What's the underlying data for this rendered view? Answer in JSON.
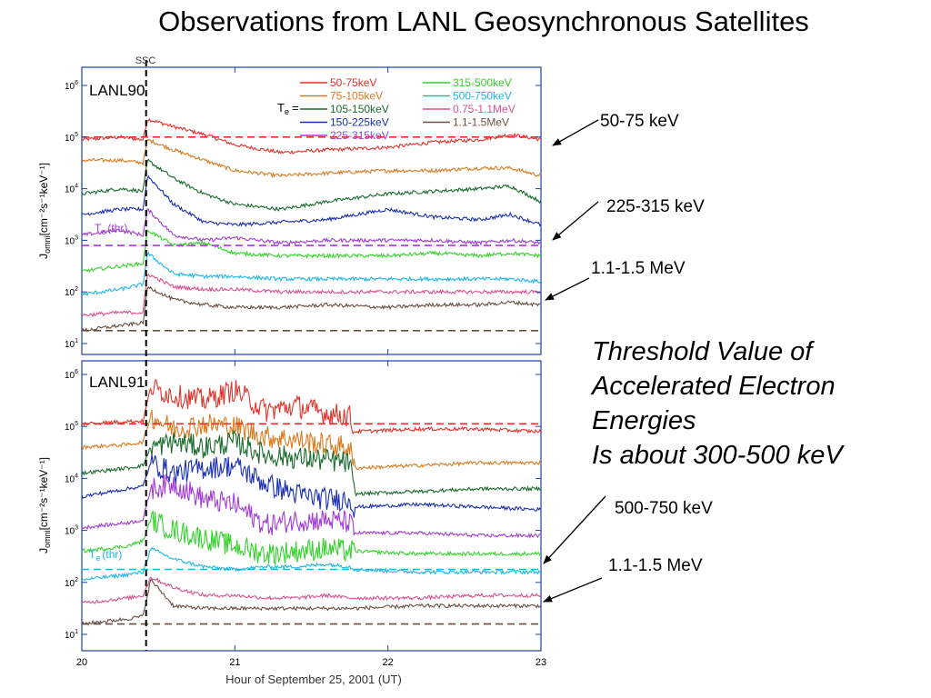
{
  "slide": {
    "title": "Observations from LANL Geosynchronous Satellites",
    "note_lines": [
      "Threshold Value of",
      "Accelerated Electron",
      "Energies",
      "Is about 300-500 keV"
    ],
    "callouts": [
      "50-75 keV",
      "225-315 keV",
      "1.1-1.5 MeV",
      "500-750 keV",
      "1.1-1.5 MeV"
    ]
  },
  "chart_data": {
    "type": "line",
    "xlabel": "Hour of September 25, 2001 (UT)",
    "x_ticks": [
      "20",
      "21",
      "22",
      "23"
    ],
    "xlim": [
      20,
      23
    ],
    "ylabel_main": "J",
    "ylabel_sub": "omni",
    "ylabel_units": "[cm⁻²s⁻¹keV⁻¹]",
    "y_scale": "log",
    "y_tick_base": "10",
    "y_ticks_top": [
      "6",
      "5",
      "4",
      "3",
      "2",
      "1"
    ],
    "y_ticks_bottom": [
      "6",
      "5",
      "4",
      "3",
      "2",
      "1"
    ],
    "ylim_log": [
      0.8,
      6.3
    ],
    "ssc_label": "SSC",
    "ssc_hour": 20.42,
    "legend_prefix": "T",
    "legend_prefix_sub": "e",
    "legend_prefix_eq": "=",
    "threshold_label": "T",
    "threshold_sub": "e",
    "threshold_suffix": "(thr)",
    "legend_placement": "top-right",
    "series": [
      {
        "name": "50-75keV",
        "color": "#e4322b"
      },
      {
        "name": "75-105keV",
        "color": "#d97a1f"
      },
      {
        "name": "105-150keV",
        "color": "#1a6b2c"
      },
      {
        "name": "150-225keV",
        "color": "#1a2fb5"
      },
      {
        "name": "225-315keV",
        "color": "#a23cd4"
      },
      {
        "name": "315-500keV",
        "color": "#33d12a"
      },
      {
        "name": "500-750keV",
        "color": "#1cb6e6"
      },
      {
        "name": "0.75-1.1MeV",
        "color": "#d9508e"
      },
      {
        "name": "1.1-1.5MeV",
        "color": "#6b4f44"
      }
    ],
    "panels": [
      {
        "name": "LANL90",
        "threshold_log": 2.9,
        "threshold_color": "#a23cd4",
        "reference_lines": [
          {
            "log": 5.0,
            "color": "#e4322b"
          },
          {
            "log": 2.9,
            "color": "#a23cd4"
          },
          {
            "log": 1.25,
            "color": "#6b4f44"
          }
        ],
        "levels": {
          "hours": [
            20.0,
            20.25,
            20.4,
            20.43,
            20.6,
            20.8,
            21.0,
            21.3,
            21.6,
            22.0,
            22.3,
            22.6,
            22.8,
            23.0
          ],
          "series": [
            [
              4.95,
              5.0,
              4.95,
              5.35,
              5.2,
              5.05,
              4.85,
              4.7,
              4.75,
              4.8,
              4.9,
              4.95,
              5.05,
              4.95
            ],
            [
              4.55,
              4.55,
              4.5,
              4.95,
              4.75,
              4.55,
              4.35,
              4.25,
              4.3,
              4.35,
              4.35,
              4.4,
              4.4,
              4.25
            ],
            [
              3.9,
              4.0,
              3.95,
              4.55,
              4.2,
              3.9,
              3.7,
              3.6,
              3.75,
              3.9,
              3.95,
              4.0,
              4.05,
              3.75
            ],
            [
              3.5,
              3.6,
              3.6,
              4.25,
              3.7,
              3.35,
              3.3,
              3.35,
              3.4,
              3.6,
              3.45,
              3.4,
              3.5,
              3.3
            ],
            [
              3.1,
              3.2,
              3.1,
              3.6,
              3.1,
              3.0,
              3.05,
              2.95,
              3.0,
              3.0,
              3.0,
              2.95,
              3.0,
              2.95
            ],
            [
              2.4,
              2.5,
              2.55,
              3.2,
              2.9,
              2.95,
              2.75,
              2.7,
              2.7,
              2.7,
              2.75,
              2.7,
              2.75,
              2.7
            ],
            [
              1.95,
              2.05,
              2.15,
              2.75,
              2.35,
              2.3,
              2.3,
              2.25,
              2.25,
              2.25,
              2.25,
              2.25,
              2.25,
              2.2
            ],
            [
              1.55,
              1.6,
              1.6,
              2.35,
              2.1,
              2.05,
              2.05,
              2.0,
              2.0,
              2.0,
              2.0,
              2.0,
              2.0,
              2.0
            ],
            [
              1.25,
              1.35,
              1.4,
              2.1,
              1.85,
              1.75,
              1.7,
              1.7,
              1.75,
              1.7,
              1.75,
              1.75,
              1.8,
              1.75
            ]
          ]
        }
      },
      {
        "name": "LANL91",
        "threshold_log": 2.25,
        "threshold_color": "#1cb6e6",
        "reference_lines": [
          {
            "log": 5.05,
            "color": "#e4322b"
          },
          {
            "log": 2.25,
            "color": "#1cb6e6"
          },
          {
            "log": 1.2,
            "color": "#6b4f44"
          }
        ],
        "levels": {
          "hours": [
            20.0,
            20.3,
            20.4,
            20.45,
            20.6,
            20.8,
            21.0,
            21.2,
            21.4,
            21.6,
            21.75,
            21.78,
            22.2,
            22.6,
            23.0
          ],
          "series": [
            [
              5.05,
              5.1,
              5.1,
              5.75,
              5.6,
              5.5,
              5.7,
              5.3,
              5.4,
              5.25,
              5.2,
              4.9,
              4.95,
              4.95,
              4.9
            ],
            [
              4.6,
              4.65,
              4.7,
              5.2,
              4.95,
              5.05,
              5.0,
              4.8,
              4.75,
              4.65,
              4.6,
              4.2,
              4.25,
              4.3,
              4.3
            ],
            [
              4.1,
              4.2,
              4.25,
              4.6,
              4.7,
              4.6,
              4.7,
              4.45,
              4.4,
              4.35,
              4.3,
              3.7,
              3.75,
              3.8,
              3.8
            ],
            [
              3.65,
              3.8,
              3.85,
              4.3,
              4.1,
              4.2,
              4.25,
              3.9,
              3.7,
              3.6,
              3.6,
              3.45,
              3.5,
              3.45,
              3.4
            ],
            [
              3.05,
              3.15,
              3.2,
              3.8,
              3.9,
              3.6,
              3.5,
              3.1,
              3.2,
              3.2,
              3.15,
              2.95,
              2.95,
              2.9,
              2.9
            ],
            [
              2.6,
              2.7,
              2.8,
              3.2,
              3.0,
              2.85,
              2.7,
              2.55,
              2.6,
              2.65,
              2.6,
              2.6,
              2.55,
              2.55,
              2.55
            ],
            [
              2.05,
              2.15,
              2.2,
              2.65,
              2.45,
              2.3,
              2.25,
              2.3,
              2.3,
              2.35,
              2.3,
              2.25,
              2.2,
              2.2,
              2.2
            ],
            [
              1.6,
              1.7,
              1.75,
              2.1,
              1.9,
              1.75,
              1.75,
              1.7,
              1.7,
              1.75,
              1.7,
              1.7,
              1.7,
              1.75,
              1.75
            ],
            [
              1.2,
              1.3,
              1.35,
              2.05,
              1.55,
              1.5,
              1.5,
              1.5,
              1.5,
              1.5,
              1.5,
              1.5,
              1.55,
              1.55,
              1.55
            ]
          ]
        }
      }
    ]
  }
}
